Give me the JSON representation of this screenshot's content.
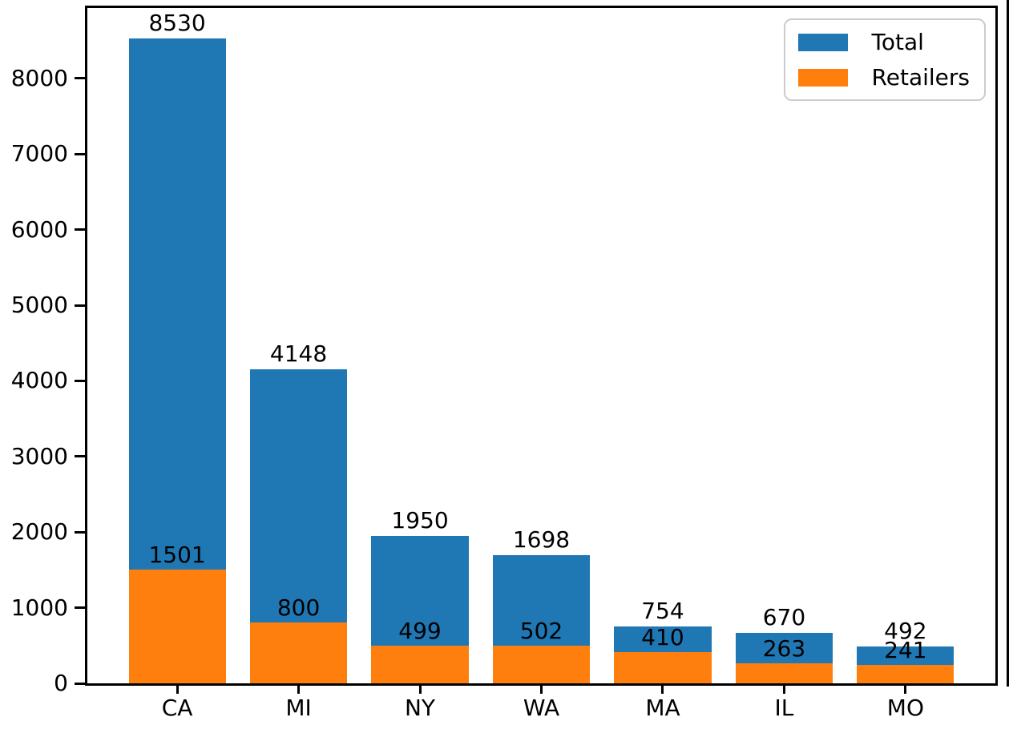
{
  "figure": {
    "background": "#ffffff",
    "axis_color": "#000000",
    "text_color": "#000000"
  },
  "chart_data": {
    "type": "bar",
    "title": "",
    "xlabel": "",
    "ylabel": "",
    "categories": [
      "CA",
      "MI",
      "NY",
      "WA",
      "MA",
      "IL",
      "MO"
    ],
    "series": [
      {
        "name": "Total",
        "color": "#1f77b4",
        "values": [
          8530,
          4148,
          1950,
          1698,
          754,
          670,
          492
        ]
      },
      {
        "name": "Retailers",
        "color": "#ff7f0e",
        "values": [
          1501,
          800,
          499,
          502,
          410,
          263,
          241
        ]
      }
    ],
    "bar_style": "overlaid-from-zero",
    "bar_value_labels": true,
    "ylim": [
      0,
      8930
    ],
    "yticks": [
      0,
      1000,
      2000,
      3000,
      4000,
      5000,
      6000,
      7000,
      8000
    ],
    "grid": false,
    "legend": {
      "position": "upper-right",
      "entries": [
        "Total",
        "Retailers"
      ]
    }
  }
}
